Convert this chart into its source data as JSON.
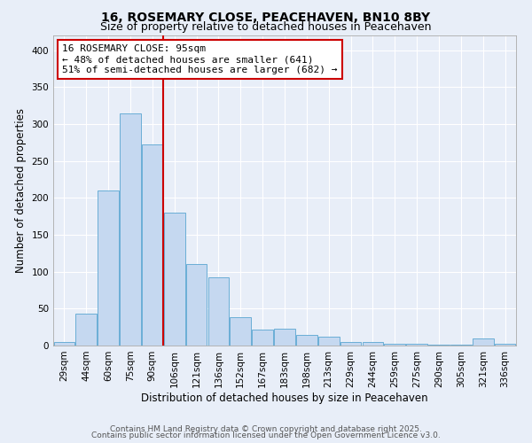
{
  "title": "16, ROSEMARY CLOSE, PEACEHAVEN, BN10 8BY",
  "subtitle": "Size of property relative to detached houses in Peacehaven",
  "xlabel": "Distribution of detached houses by size in Peacehaven",
  "ylabel": "Number of detached properties",
  "bin_labels": [
    "29sqm",
    "44sqm",
    "60sqm",
    "75sqm",
    "90sqm",
    "106sqm",
    "121sqm",
    "136sqm",
    "152sqm",
    "167sqm",
    "183sqm",
    "198sqm",
    "213sqm",
    "229sqm",
    "244sqm",
    "259sqm",
    "275sqm",
    "290sqm",
    "305sqm",
    "321sqm",
    "336sqm"
  ],
  "bar_heights": [
    5,
    43,
    210,
    315,
    273,
    180,
    110,
    92,
    38,
    22,
    23,
    15,
    12,
    5,
    5,
    2,
    2,
    1,
    1,
    10,
    2
  ],
  "bar_color": "#c5d8f0",
  "bar_edge_color": "#6aaed6",
  "vline_color": "#cc0000",
  "vline_x": 4.5,
  "annotation_title": "16 ROSEMARY CLOSE: 95sqm",
  "annotation_line1": "← 48% of detached houses are smaller (641)",
  "annotation_line2": "51% of semi-detached houses are larger (682) →",
  "annotation_box_color": "#ffffff",
  "annotation_box_edge": "#cc0000",
  "ylim": [
    0,
    420
  ],
  "yticks": [
    0,
    50,
    100,
    150,
    200,
    250,
    300,
    350,
    400
  ],
  "footer1": "Contains HM Land Registry data © Crown copyright and database right 2025.",
  "footer2": "Contains public sector information licensed under the Open Government Licence v3.0.",
  "background_color": "#e8eef8",
  "plot_bg_color": "#e8eef8",
  "title_fontsize": 10,
  "subtitle_fontsize": 9,
  "axis_label_fontsize": 8.5,
  "tick_fontsize": 7.5,
  "annotation_fontsize": 8,
  "footer_fontsize": 6.5
}
